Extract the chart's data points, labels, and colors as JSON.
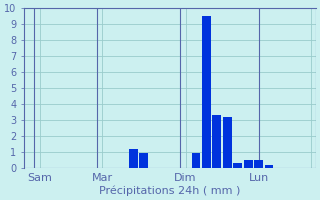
{
  "xlabel": "Précipitations 24h ( mm )",
  "bar_color": "#0033dd",
  "background_color": "#ccf0f0",
  "grid_color": "#99cccc",
  "axis_color": "#5566aa",
  "ylim": [
    0,
    10
  ],
  "yticks": [
    0,
    1,
    2,
    3,
    4,
    5,
    6,
    7,
    8,
    9,
    10
  ],
  "xlim": [
    0,
    28
  ],
  "bar_positions": [
    10.5,
    11.5,
    16.5,
    17.5,
    18.5,
    19.5,
    20.5,
    21.5,
    22.5,
    23.5
  ],
  "bar_heights": [
    1.2,
    0.9,
    0.95,
    9.5,
    3.3,
    3.2,
    0.3,
    0.5,
    0.5,
    0.2
  ],
  "bar_width": 0.85,
  "day_ticks_x": [
    1,
    7,
    15,
    22.5,
    28
  ],
  "day_labels": [
    "Sam",
    "Mar",
    "",
    "Dim",
    "Lun"
  ],
  "day_line_x": [
    1,
    7,
    15,
    22.5
  ],
  "xlabel_fontsize": 8,
  "ytick_fontsize": 7,
  "xtick_fontsize": 8
}
